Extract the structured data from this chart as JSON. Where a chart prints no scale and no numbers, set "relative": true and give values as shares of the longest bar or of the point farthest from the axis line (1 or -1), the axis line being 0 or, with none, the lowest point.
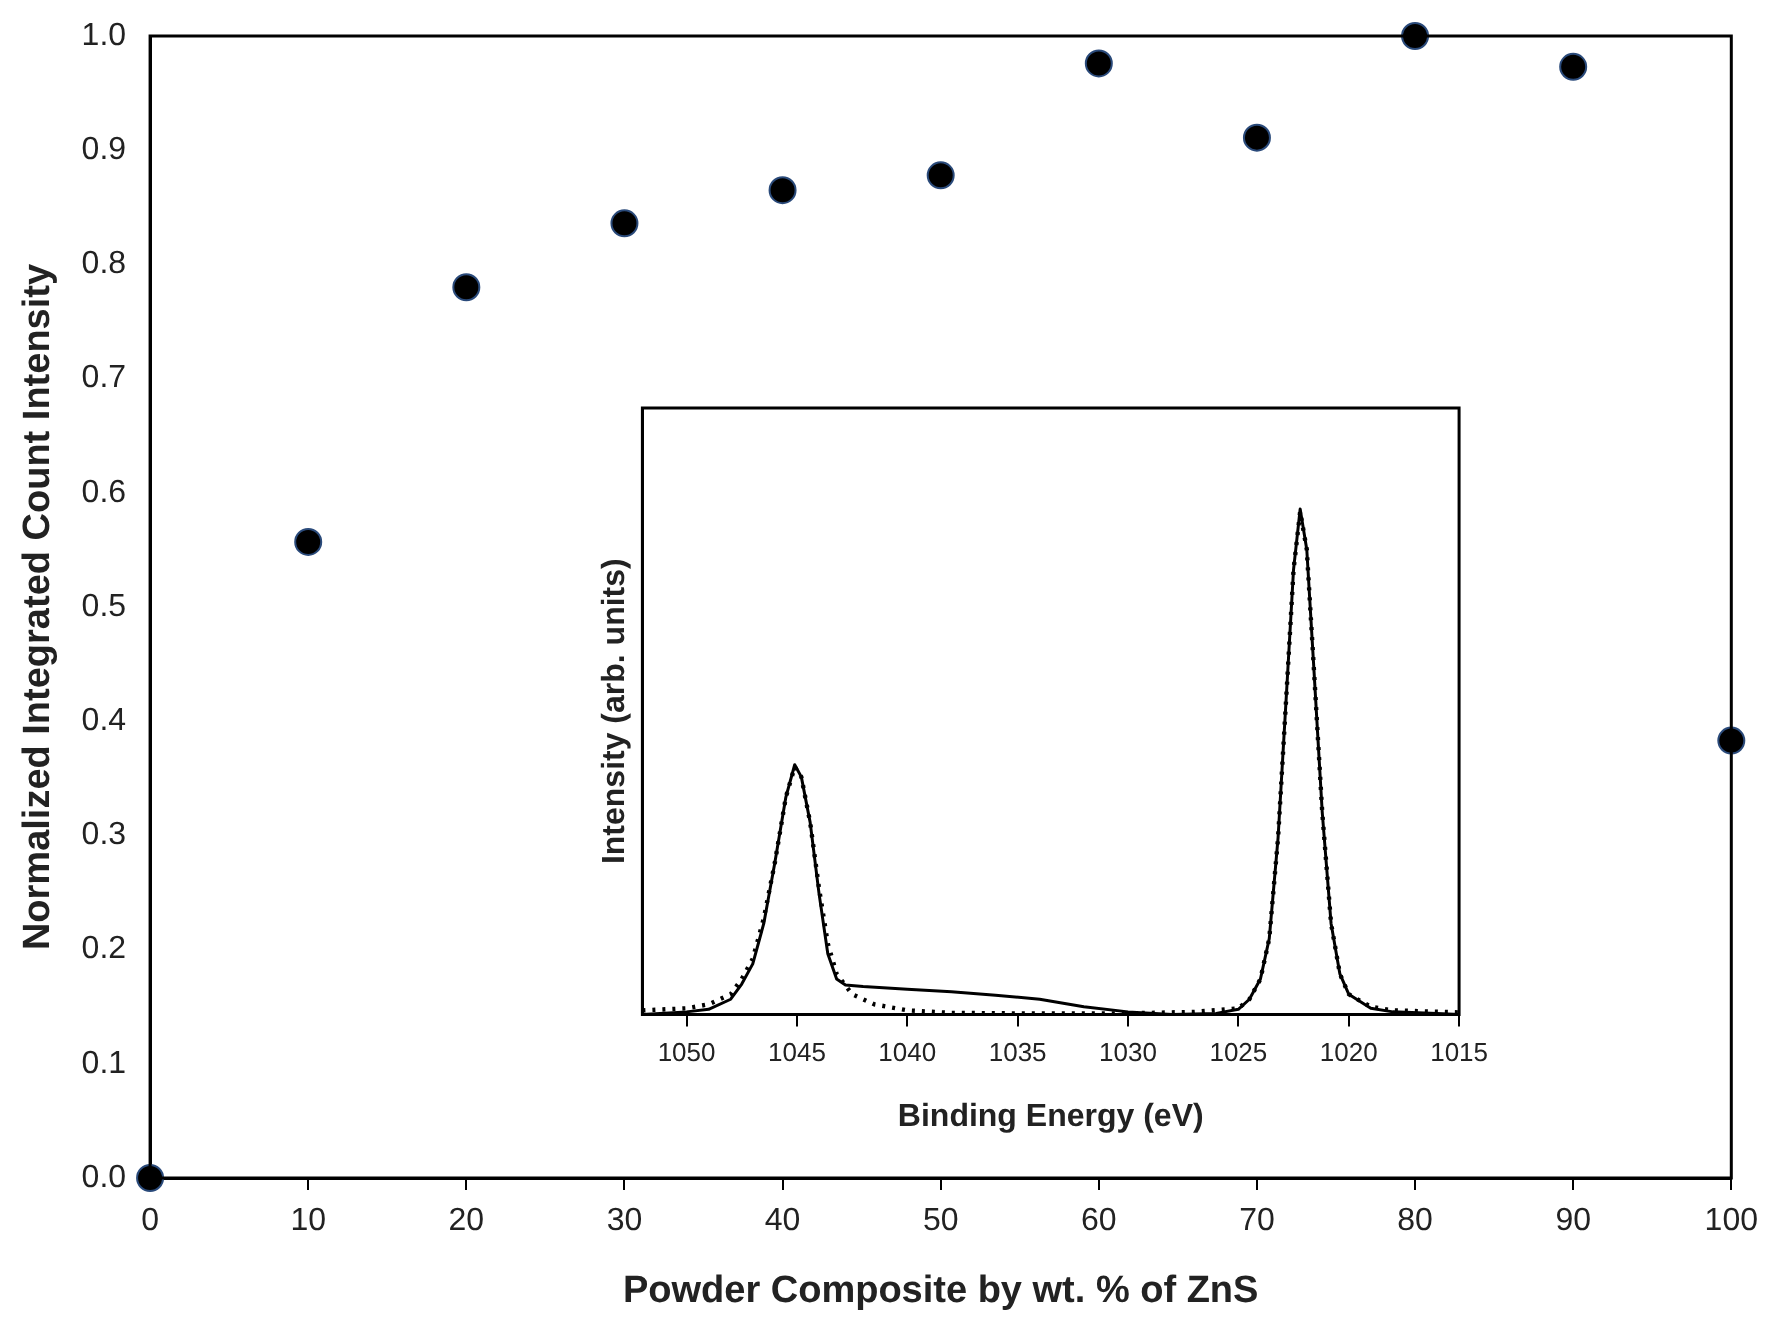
{
  "chart_data": [
    {
      "type": "scatter",
      "xlabel": "Powder Composite by wt. % of ZnS",
      "ylabel": "Normalized Integrated Count Intensity",
      "x": [
        0,
        10,
        20,
        30,
        40,
        50,
        60,
        70,
        80,
        90,
        100
      ],
      "values": [
        0,
        0.557,
        0.78,
        0.836,
        0.865,
        0.878,
        0.976,
        0.911,
        1.0,
        0.973,
        0.383
      ],
      "color": "#000000",
      "marker": "circle",
      "xlim": [
        0,
        100
      ],
      "xticks": [
        0,
        10,
        20,
        30,
        40,
        50,
        60,
        70,
        80,
        90,
        100
      ],
      "ylim": [
        0,
        1.0
      ],
      "yticks": [
        {
          "value": 0,
          "label": "0.0"
        },
        0.1,
        0.2,
        0.3,
        0.4,
        0.5,
        0.6,
        0.7,
        0.8,
        0.9,
        {
          "value": 1,
          "label": "1.0"
        }
      ]
    },
    {
      "type": "line",
      "xlabel": "Binding Energy (eV)",
      "ylabel": "Intensity (arb. units)",
      "relative": true,
      "tick_labels": "x",
      "marker": "none",
      "xlim": [
        1052,
        1015
      ],
      "xticks": [
        1050,
        1045,
        1040,
        1035,
        1030,
        1025,
        1020,
        1015
      ],
      "series": [
        {
          "color": "#000000",
          "line_style": "solid",
          "x": [
            1052,
            1050,
            1049,
            1048,
            1047.5,
            1047,
            1046.5,
            1046,
            1045.5,
            1045.1,
            1044.8,
            1044.4,
            1044,
            1043.6,
            1043.2,
            1042.8,
            1042,
            1040,
            1038,
            1036,
            1034,
            1032,
            1030,
            1028,
            1026,
            1025,
            1024.5,
            1024,
            1023.6,
            1023.2,
            1022.8,
            1022.5,
            1022.2,
            1021.9,
            1021.6,
            1021.2,
            1020.8,
            1020.4,
            1020,
            1019,
            1018,
            1016,
            1015
          ],
          "values": [
            0.0,
            0.005,
            0.01,
            0.03,
            0.06,
            0.1,
            0.18,
            0.3,
            0.43,
            0.494,
            0.47,
            0.38,
            0.24,
            0.12,
            0.07,
            0.058,
            0.055,
            0.05,
            0.045,
            0.038,
            0.03,
            0.015,
            0.005,
            0.0,
            0.002,
            0.01,
            0.03,
            0.07,
            0.15,
            0.35,
            0.65,
            0.88,
            1.0,
            0.92,
            0.7,
            0.4,
            0.18,
            0.08,
            0.04,
            0.012,
            0.005,
            0.002,
            0.0
          ]
        },
        {
          "color": "#000000",
          "line_style": "dotted",
          "x": [
            1052,
            1050,
            1049,
            1048,
            1047.5,
            1047,
            1046.5,
            1046,
            1045.5,
            1045.1,
            1044.8,
            1044.4,
            1044,
            1043.6,
            1043.2,
            1042.5,
            1041.5,
            1040,
            1038,
            1035,
            1030,
            1027,
            1025,
            1024.5,
            1024,
            1023.6,
            1023.2,
            1022.8,
            1022.5,
            1022.2,
            1021.9,
            1021.6,
            1021.2,
            1020.8,
            1020.4,
            1020,
            1019,
            1018,
            1015
          ],
          "values": [
            0.008,
            0.012,
            0.02,
            0.04,
            0.07,
            0.11,
            0.19,
            0.3,
            0.43,
            0.49,
            0.47,
            0.38,
            0.25,
            0.14,
            0.08,
            0.04,
            0.02,
            0.008,
            0.003,
            0.002,
            0.002,
            0.005,
            0.012,
            0.03,
            0.07,
            0.15,
            0.35,
            0.65,
            0.88,
            0.995,
            0.92,
            0.7,
            0.4,
            0.18,
            0.08,
            0.04,
            0.015,
            0.008,
            0.004
          ]
        }
      ]
    }
  ]
}
